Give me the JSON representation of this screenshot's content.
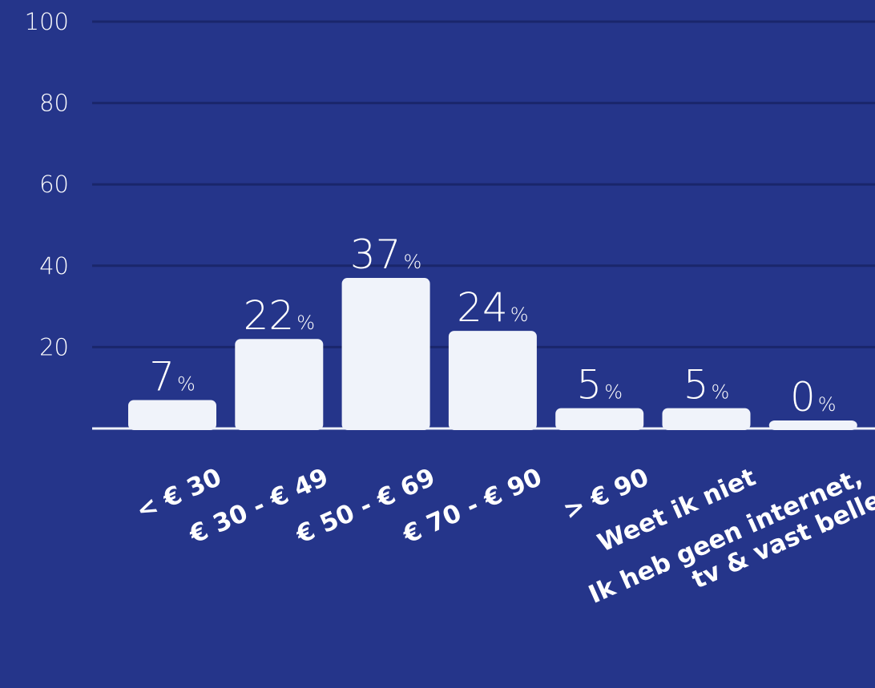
{
  "colors": {
    "background": "#25358a",
    "bar": "#f0f3fa",
    "gridline": "#1a266b",
    "baseline": "#f0f3fa",
    "text": "#ffffff"
  },
  "chart_data": {
    "type": "bar",
    "categories": [
      "< € 30",
      "€ 30 - € 49",
      "€ 50 - € 69",
      "€ 70 - € 90",
      "> € 90",
      "Weet ik niet",
      "Ik heb geen internet,\ntv & vast bellen"
    ],
    "values": [
      7,
      22,
      37,
      24,
      5,
      5,
      0
    ],
    "value_labels": [
      "7",
      "22",
      "37",
      "24",
      "5",
      "5",
      "0"
    ],
    "value_unit": "%",
    "yticks": [
      "100",
      "80",
      "60",
      "40",
      "20"
    ],
    "ylim": [
      0,
      100
    ],
    "grid": true,
    "legend": "none"
  }
}
